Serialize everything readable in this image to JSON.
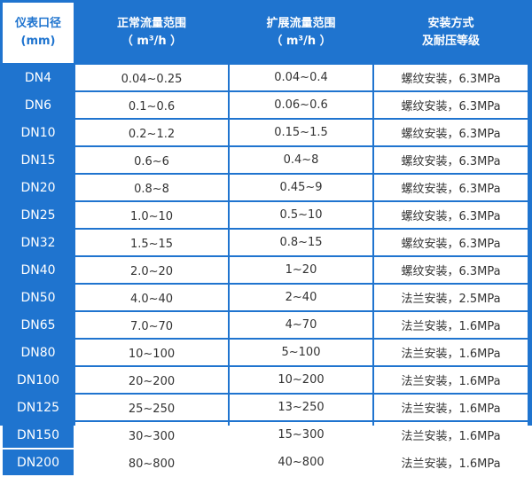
{
  "colors": {
    "header_blue": "#1f74cf",
    "text": "#333333"
  },
  "headers": [
    {
      "line1": "仪表口径",
      "line2": "(mm)"
    },
    {
      "line1": "正常流量范围",
      "line2": "（ m³/h ）"
    },
    {
      "line1": "扩展流量范围",
      "line2": "（ m³/h ）"
    },
    {
      "line1": "安装方式",
      "line2": "及耐压等级"
    }
  ],
  "rows": [
    {
      "dn": "DN4",
      "normal": "0.04~0.25",
      "extended": "0.04~0.4",
      "install": "螺纹安装，6.3MPa"
    },
    {
      "dn": "DN6",
      "normal": "0.1~0.6",
      "extended": "0.06~0.6",
      "install": "螺纹安装，6.3MPa"
    },
    {
      "dn": "DN10",
      "normal": "0.2~1.2",
      "extended": "0.15~1.5",
      "install": "螺纹安装，6.3MPa"
    },
    {
      "dn": "DN15",
      "normal": "0.6~6",
      "extended": "0.4~8",
      "install": "螺纹安装，6.3MPa"
    },
    {
      "dn": "DN20",
      "normal": "0.8~8",
      "extended": "0.45~9",
      "install": "螺纹安装，6.3MPa"
    },
    {
      "dn": "DN25",
      "normal": "1.0~10",
      "extended": "0.5~10",
      "install": "螺纹安装，6.3MPa"
    },
    {
      "dn": "DN32",
      "normal": "1.5~15",
      "extended": "0.8~15",
      "install": "螺纹安装，6.3MPa"
    },
    {
      "dn": "DN40",
      "normal": "2.0~20",
      "extended": "1~20",
      "install": "螺纹安装，6.3MPa"
    },
    {
      "dn": "DN50",
      "normal": "4.0~40",
      "extended": "2~40",
      "install": "法兰安装，2.5MPa"
    },
    {
      "dn": "DN65",
      "normal": "7.0~70",
      "extended": "4~70",
      "install": "法兰安装，1.6MPa"
    },
    {
      "dn": "DN80",
      "normal": "10~100",
      "extended": "5~100",
      "install": "法兰安装，1.6MPa"
    },
    {
      "dn": "DN100",
      "normal": "20~200",
      "extended": "10~200",
      "install": "法兰安装，1.6MPa"
    },
    {
      "dn": "DN125",
      "normal": "25~250",
      "extended": "13~250",
      "install": "法兰安装，1.6MPa"
    },
    {
      "dn": "DN150",
      "normal": "30~300",
      "extended": "15~300",
      "install": "法兰安装，1.6MPa"
    },
    {
      "dn": "DN200",
      "normal": "80~800",
      "extended": "40~800",
      "install": "法兰安装，1.6MPa"
    }
  ]
}
